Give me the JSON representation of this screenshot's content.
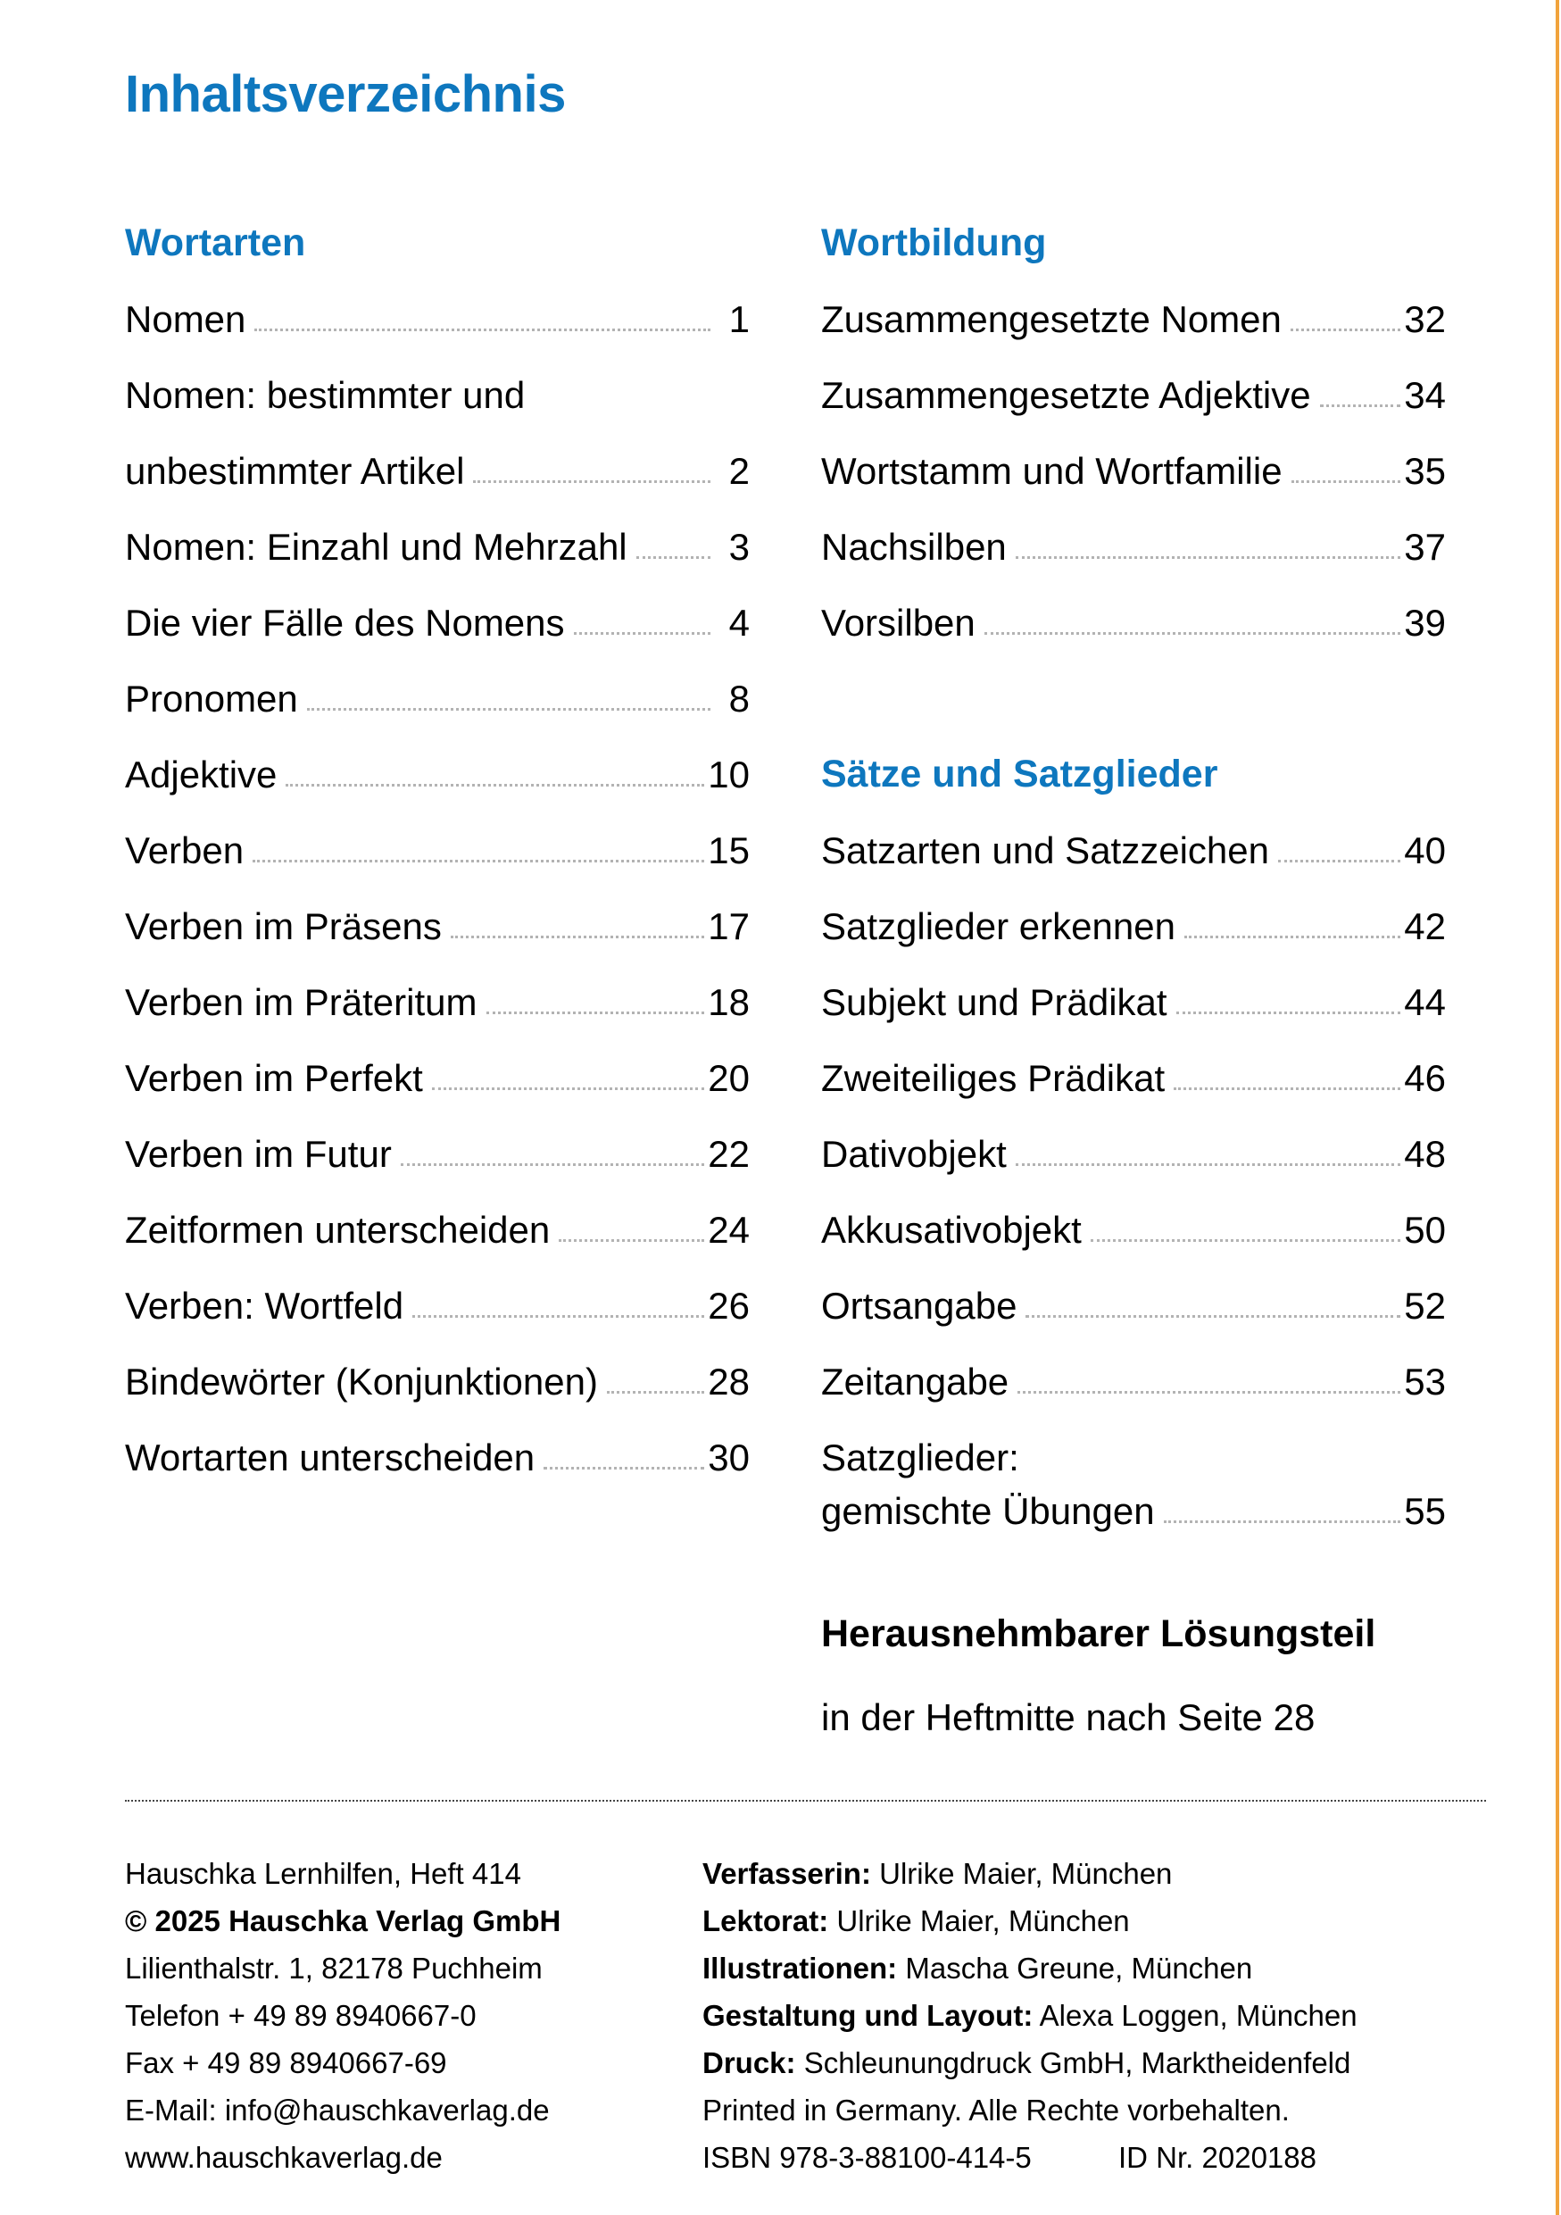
{
  "page": {
    "title": "Inhaltsverzeichnis",
    "accent_blue": "#0E77BE",
    "edge_orange": "#F1A33C",
    "leader_dot_color": "#b3b3b3"
  },
  "toc": {
    "columns": [
      {
        "id": "left",
        "items": [
          {
            "type": "heading",
            "label": "Wortarten"
          },
          {
            "type": "entry",
            "label": "Nomen",
            "page": "1"
          },
          {
            "type": "entry",
            "label": "Nomen: bestimmter und",
            "page": null
          },
          {
            "type": "entry",
            "label": "unbestimmter Artikel",
            "page": "2"
          },
          {
            "type": "entry",
            "label": "Nomen: Einzahl und Mehrzahl",
            "page": "3"
          },
          {
            "type": "entry",
            "label": "Die vier Fälle des Nomens",
            "page": "4"
          },
          {
            "type": "entry",
            "label": "Pronomen",
            "page": "8"
          },
          {
            "type": "entry",
            "label": "Adjektive",
            "page": "10"
          },
          {
            "type": "entry",
            "label": "Verben",
            "page": "15"
          },
          {
            "type": "entry",
            "label": "Verben im Präsens",
            "page": "17"
          },
          {
            "type": "entry",
            "label": "Verben im Präteritum",
            "page": "18"
          },
          {
            "type": "entry",
            "label": "Verben im Perfekt",
            "page": "20"
          },
          {
            "type": "entry",
            "label": "Verben im Futur",
            "page": "22"
          },
          {
            "type": "entry",
            "label": "Zeitformen unterscheiden",
            "page": "24"
          },
          {
            "type": "entry",
            "label": "Verben: Wortfeld",
            "page": "26"
          },
          {
            "type": "entry",
            "label": "Bindewörter (Konjunktionen)",
            "page": "28"
          },
          {
            "type": "entry",
            "label": "Wortarten unterscheiden",
            "page": "30"
          }
        ]
      },
      {
        "id": "right",
        "items": [
          {
            "type": "heading",
            "label": "Wortbildung"
          },
          {
            "type": "entry",
            "label": "Zusammengesetzte Nomen",
            "page": "32"
          },
          {
            "type": "entry",
            "label": "Zusammengesetzte Adjektive",
            "page": "34"
          },
          {
            "type": "entry",
            "label": "Wortstamm und Wortfamilie",
            "page": "35"
          },
          {
            "type": "entry",
            "label": "Nachsilben",
            "page": "37"
          },
          {
            "type": "entry",
            "label": "Vorsilben",
            "page": "39"
          },
          {
            "type": "spacer"
          },
          {
            "type": "heading",
            "label": "Sätze und Satzglieder"
          },
          {
            "type": "entry",
            "label": "Satzarten und Satzzeichen",
            "page": "40"
          },
          {
            "type": "entry",
            "label": "Satzglieder erkennen",
            "page": "42"
          },
          {
            "type": "entry",
            "label": "Subjekt und Prädikat",
            "page": "44"
          },
          {
            "type": "entry",
            "label": "Zweiteiliges Prädikat",
            "page": "46"
          },
          {
            "type": "entry",
            "label": "Dativobjekt",
            "page": "48"
          },
          {
            "type": "entry",
            "label": "Akkusativobjekt",
            "page": "50"
          },
          {
            "type": "entry",
            "label": "Ortsangabe",
            "page": "52"
          },
          {
            "type": "entry",
            "label": "Zeitangabe",
            "page": "53"
          },
          {
            "type": "entry",
            "label": "Satzglieder:",
            "page": null
          },
          {
            "type": "entry",
            "label": "gemischte Übungen",
            "page": "55",
            "tight": true
          }
        ]
      }
    ]
  },
  "solutions_note": {
    "title": "Herausnehmbarer Lösungsteil",
    "subtitle": "in der Heftmitte nach Seite 28"
  },
  "footer": {
    "left_lines": [
      {
        "text": "Hauschka Lernhilfen, Heft 414",
        "bold": false
      },
      {
        "text": "© 2025 Hauschka Verlag GmbH",
        "bold": true
      },
      {
        "text": "Lilienthalstr. 1, 82178 Puchheim",
        "bold": false
      },
      {
        "text": "Telefon + 49 89 8940667-0",
        "bold": false
      },
      {
        "text": "Fax + 49 89 8940667-69",
        "bold": false
      },
      {
        "text": "E-Mail: info@hauschkaverlag.de",
        "bold": false
      },
      {
        "text": "www.hauschkaverlag.de",
        "bold": false
      }
    ],
    "right_lines": [
      {
        "label": "Verfasserin:",
        "text": " Ulrike Maier, München"
      },
      {
        "label": "Lektorat:",
        "text": " Ulrike Maier, München"
      },
      {
        "label": "Illustrationen:",
        "text": " Mascha Greune, München"
      },
      {
        "label": "Gestaltung und Layout:",
        "text": " Alexa Loggen, München"
      },
      {
        "label": "Druck:",
        "text": " Schleunungdruck GmbH, Marktheidenfeld"
      },
      {
        "label": "",
        "text": "Printed in Germany. Alle Rechte vorbehalten."
      },
      {
        "label": "",
        "text": "ISBN 978-3-88100-414-5",
        "text2": "ID Nr. 2020188"
      }
    ]
  }
}
